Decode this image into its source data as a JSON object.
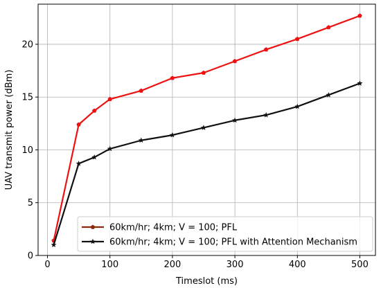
{
  "chart_data": {
    "type": "line",
    "xlabel": "Timeslot (ms)",
    "ylabel": "UAV transmit power (dBm)",
    "xlim": [
      -15,
      525
    ],
    "ylim": [
      0,
      23.8
    ],
    "x_ticks": [
      0,
      100,
      200,
      300,
      400,
      500
    ],
    "y_ticks": [
      0,
      5,
      10,
      15,
      20
    ],
    "grid": true,
    "legend_position": "lower-right",
    "series": [
      {
        "name": "60km/hr; 4km; V = 100; PFL",
        "legend_color": "#8b2a0a",
        "color": "#ee1111",
        "marker": "pentagon",
        "x": [
          10,
          50,
          75,
          100,
          150,
          200,
          250,
          300,
          350,
          400,
          450,
          500
        ],
        "y": [
          1.4,
          12.4,
          13.7,
          14.8,
          15.6,
          16.8,
          17.3,
          18.4,
          19.5,
          20.5,
          21.6,
          22.7
        ]
      },
      {
        "name": "60km/hr; 4km; V = 100; PFL with Attention Mechanism",
        "color": "#111111",
        "marker": "star",
        "x": [
          10,
          50,
          75,
          100,
          150,
          200,
          250,
          300,
          350,
          400,
          450,
          500
        ],
        "y": [
          1.0,
          8.7,
          9.3,
          10.1,
          10.9,
          11.4,
          12.1,
          12.8,
          13.3,
          14.1,
          15.2,
          16.3
        ]
      }
    ]
  }
}
